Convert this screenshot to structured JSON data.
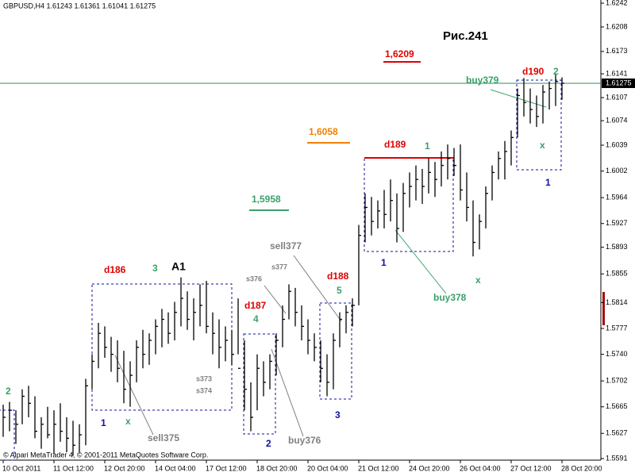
{
  "chart_data": {
    "type": "ohlc",
    "header": "GBPUSD,H4  1.61243 1.61361 1.61041 1.61275",
    "footer": "© Alpari MetaTrader 4, © 2001-2011 MetaQuotes Software Corp.",
    "current_price": 1.61275,
    "current_price_color": "#3a8a5a",
    "bar_color": "#000000",
    "categories": [
      "10 Oct 2011",
      null,
      null,
      null,
      null,
      null,
      null,
      null,
      "11 Oct 12:00",
      null,
      null,
      null,
      null,
      null,
      null,
      null,
      "12 Oct 20:00",
      null,
      null,
      null,
      null,
      null,
      null,
      null,
      "14 Oct 04:00",
      null,
      null,
      null,
      null,
      null,
      null,
      null,
      "17 Oct 12:00",
      null,
      null,
      null,
      null,
      null,
      null,
      null,
      "18 Oct 20:00",
      null,
      null,
      null,
      null,
      null,
      null,
      null,
      "20 Oct 04:00",
      null,
      null,
      null,
      null,
      null,
      null,
      null,
      "21 Oct 12:00",
      null,
      null,
      null,
      null,
      null,
      null,
      null,
      "24 Oct 20:00",
      null,
      null,
      null,
      null,
      null,
      null,
      null,
      "26 Oct 04:00",
      null,
      null,
      null,
      null,
      null,
      null,
      null,
      "27 Oct 12:00",
      null,
      null,
      null,
      null,
      null,
      null,
      null,
      "28 Oct 20:00"
    ],
    "high": [
      1.5668,
      1.5672,
      1.566,
      1.569,
      1.5695,
      1.568,
      1.565,
      1.5665,
      1.566,
      1.567,
      1.565,
      1.5645,
      1.564,
      1.5705,
      1.574,
      1.5785,
      1.578,
      1.5765,
      1.576,
      1.5745,
      1.573,
      1.576,
      1.5775,
      1.577,
      1.579,
      1.5805,
      1.58,
      1.5815,
      1.585,
      1.583,
      1.582,
      1.584,
      1.5845,
      1.58,
      1.579,
      1.578,
      1.5775,
      1.582,
      1.576,
      1.57,
      1.574,
      1.573,
      1.574,
      1.577,
      1.581,
      1.584,
      1.5835,
      1.581,
      1.579,
      1.577,
      1.576,
      1.574,
      1.577,
      1.58,
      1.581,
      1.582,
      1.5925,
      1.597,
      1.5965,
      1.596,
      1.5975,
      1.599,
      1.597,
      1.5985,
      1.6,
      1.601,
      1.6005,
      1.602,
      1.6015,
      1.603,
      1.604,
      1.6035,
      1.604,
      1.6,
      1.596,
      1.594,
      1.598,
      1.601,
      1.603,
      1.6045,
      1.606,
      1.612,
      1.6135,
      1.612,
      1.611,
      1.6125,
      1.613,
      1.614,
      1.6136
    ],
    "low": [
      1.5622,
      1.563,
      1.5612,
      1.564,
      1.565,
      1.562,
      1.5605,
      1.562,
      1.5598,
      1.5615,
      1.56,
      1.5595,
      1.56,
      1.561,
      1.569,
      1.572,
      1.5735,
      1.5715,
      1.57,
      1.567,
      1.5665,
      1.57,
      1.572,
      1.5725,
      1.574,
      1.575,
      1.5755,
      1.576,
      1.578,
      1.5775,
      1.576,
      1.578,
      1.577,
      1.574,
      1.572,
      1.573,
      1.5725,
      1.574,
      1.566,
      1.563,
      1.566,
      1.568,
      1.569,
      1.571,
      1.575,
      1.579,
      1.578,
      1.576,
      1.574,
      1.573,
      1.57,
      1.568,
      1.569,
      1.575,
      1.577,
      1.578,
      1.581,
      1.59,
      1.591,
      1.592,
      1.592,
      1.593,
      1.59,
      1.5915,
      1.595,
      1.596,
      1.5955,
      1.597,
      1.5965,
      1.598,
      1.599,
      1.5995,
      1.596,
      1.593,
      1.588,
      1.589,
      1.592,
      1.596,
      1.599,
      1.599,
      1.601,
      1.605,
      1.608,
      1.607,
      1.6065,
      1.607,
      1.609,
      1.6095,
      1.6104
    ],
    "close": [
      1.565,
      1.566,
      1.564,
      1.568,
      1.567,
      1.563,
      1.564,
      1.5625,
      1.564,
      1.563,
      1.562,
      1.561,
      1.5625,
      1.5695,
      1.573,
      1.577,
      1.575,
      1.574,
      1.572,
      1.569,
      1.571,
      1.575,
      1.574,
      1.576,
      1.578,
      1.579,
      1.577,
      1.58,
      1.582,
      1.579,
      1.58,
      1.581,
      1.578,
      1.577,
      1.575,
      1.576,
      1.574,
      1.572,
      1.569,
      1.565,
      1.572,
      1.57,
      1.573,
      1.576,
      1.579,
      1.583,
      1.58,
      1.578,
      1.576,
      1.575,
      1.572,
      1.57,
      1.576,
      1.579,
      1.58,
      1.581,
      1.591,
      1.595,
      1.593,
      1.5945,
      1.594,
      1.596,
      1.592,
      1.597,
      1.598,
      1.599,
      1.598,
      1.6,
      1.599,
      1.601,
      1.602,
      1.601,
      1.5975,
      1.595,
      1.59,
      1.593,
      1.597,
      1.6,
      1.602,
      1.603,
      1.605,
      1.611,
      1.61,
      1.609,
      1.608,
      1.6115,
      1.612,
      1.613,
      1.61275
    ],
    "ylim": [
      1.5591,
      1.6242
    ],
    "yticks": [
      1.6242,
      1.6208,
      1.6173,
      1.6141,
      1.6107,
      1.6074,
      1.6039,
      1.6002,
      1.5964,
      1.5927,
      1.5893,
      1.5855,
      1.5814,
      1.5777,
      {
        "value": 1.574,
        "label": "1.5740"
      },
      1.5702,
      1.5665,
      1.5627,
      1.5591
    ],
    "annotations": [
      {
        "text": "Рис.241",
        "color": "#000000"
      },
      {
        "text": "1,6209",
        "color": "#e00000"
      },
      {
        "text": "d190",
        "color": "#e00000"
      },
      {
        "text": "2",
        "color": "#3aa06a"
      },
      {
        "text": "buy379",
        "color": "#3aa06a"
      },
      {
        "text": "1,6058",
        "color": "#f08000"
      },
      {
        "text": "d189",
        "color": "#e00000"
      },
      {
        "text": "1",
        "color": "#3aa06a"
      },
      {
        "text": "x",
        "color": "#3aa06a"
      },
      {
        "text": "1",
        "color": "#1010a0"
      },
      {
        "text": "1,5958",
        "color": "#3aa06a"
      },
      {
        "text": "sell377",
        "color": "#808080"
      },
      {
        "text": "1",
        "color": "#1010a0"
      },
      {
        "text": "d186",
        "color": "#e00000"
      },
      {
        "text": "3",
        "color": "#3aa06a"
      },
      {
        "text": "A1",
        "color": "#000000"
      },
      {
        "text": "s377",
        "color": "#808080"
      },
      {
        "text": "s376",
        "color": "#808080"
      },
      {
        "text": "d188",
        "color": "#e00000"
      },
      {
        "text": "x",
        "color": "#3aa06a"
      },
      {
        "text": "5",
        "color": "#3aa06a"
      },
      {
        "text": "buy378",
        "color": "#3aa06a"
      },
      {
        "text": "d187",
        "color": "#e00000"
      },
      {
        "text": "4",
        "color": "#3aa06a"
      },
      {
        "text": "s373",
        "color": "#808080"
      },
      {
        "text": "s374",
        "color": "#808080"
      },
      {
        "text": "2",
        "color": "#3aa06a"
      },
      {
        "text": "1",
        "color": "#1010a0"
      },
      {
        "text": "x",
        "color": "#3aa06a"
      },
      {
        "text": "3",
        "color": "#1010a0"
      },
      {
        "text": "sell375",
        "color": "#808080"
      },
      {
        "text": "buy376",
        "color": "#808080"
      },
      {
        "text": "2",
        "color": "#1010a0"
      }
    ]
  }
}
